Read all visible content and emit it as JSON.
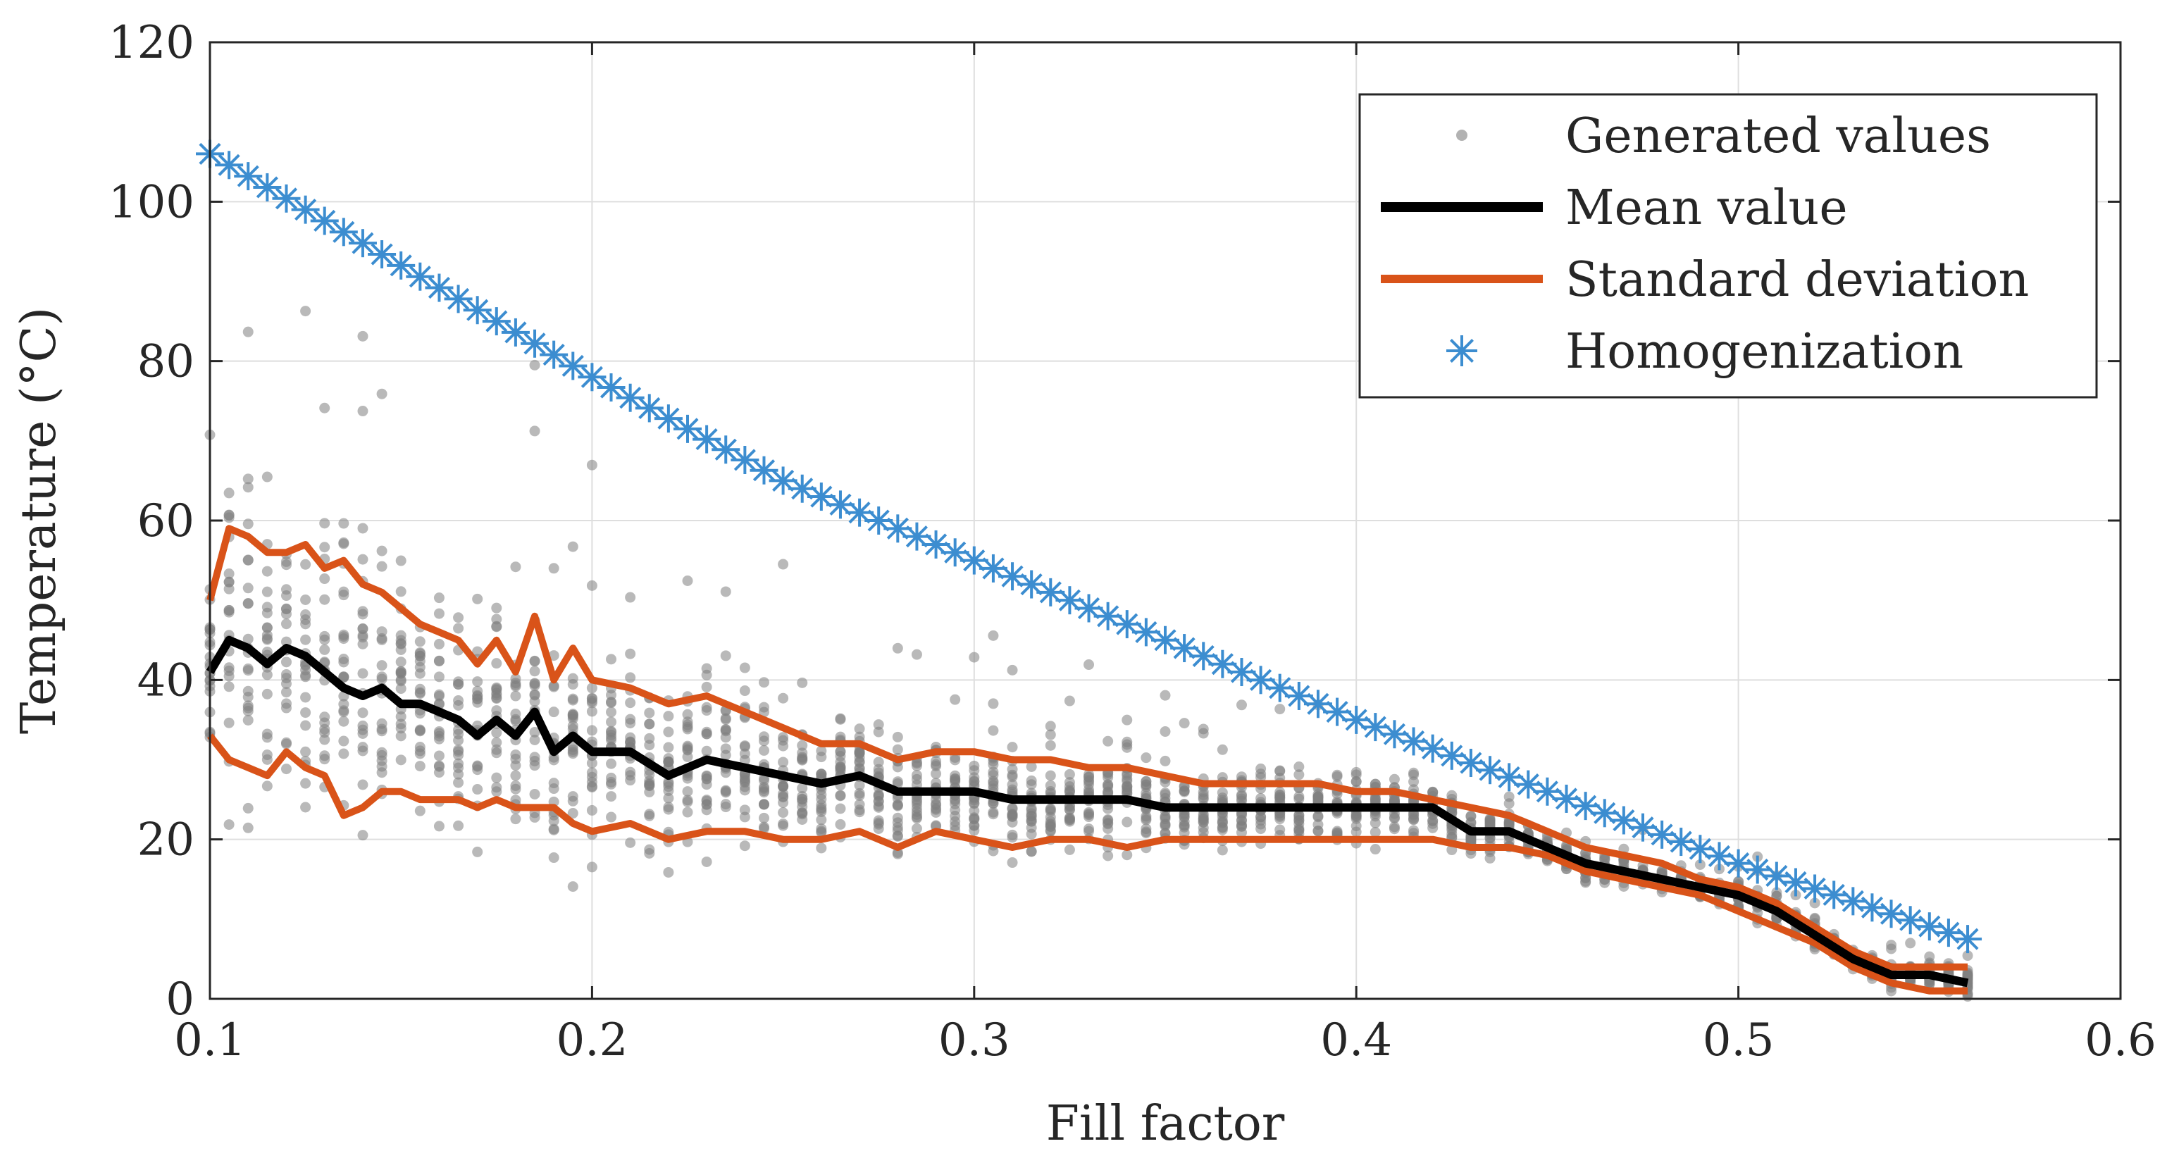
{
  "chart_data": {
    "type": "scatter",
    "title": "",
    "xlabel": "Fill factor",
    "ylabel": "Temperature (°C)",
    "xlim": [
      0.1,
      0.6
    ],
    "ylim": [
      0,
      120
    ],
    "xticks": [
      0.1,
      0.2,
      0.3,
      0.4,
      0.5,
      0.6
    ],
    "yticks": [
      0,
      20,
      40,
      60,
      80,
      100,
      120
    ],
    "xtick_labels": [
      "0.1",
      "0.2",
      "0.3",
      "0.4",
      "0.5",
      "0.6"
    ],
    "ytick_labels": [
      "0",
      "20",
      "40",
      "60",
      "80",
      "100",
      "120"
    ],
    "grid": true,
    "legend_position": "top-right",
    "colors": {
      "generated": "#7f7f7f",
      "mean": "#000000",
      "std": "#d95319",
      "homogenization": "#3c8dd0",
      "axes": "#262626",
      "grid": "#dedede"
    },
    "legend": [
      {
        "key": "generated",
        "label": "Generated values",
        "marker": "dot"
      },
      {
        "key": "mean",
        "label": "Mean value",
        "marker": "line"
      },
      {
        "key": "std",
        "label": "Standard deviation",
        "marker": "line"
      },
      {
        "key": "homogenization",
        "label": "Homogenization",
        "marker": "star"
      }
    ],
    "series": {
      "mean": {
        "name": "Mean value",
        "x": [
          0.1,
          0.105,
          0.11,
          0.115,
          0.12,
          0.125,
          0.13,
          0.135,
          0.14,
          0.145,
          0.15,
          0.155,
          0.16,
          0.165,
          0.17,
          0.175,
          0.18,
          0.185,
          0.19,
          0.195,
          0.2,
          0.21,
          0.22,
          0.23,
          0.24,
          0.25,
          0.26,
          0.27,
          0.28,
          0.29,
          0.3,
          0.31,
          0.32,
          0.33,
          0.34,
          0.35,
          0.36,
          0.37,
          0.38,
          0.39,
          0.4,
          0.41,
          0.42,
          0.43,
          0.44,
          0.45,
          0.46,
          0.47,
          0.48,
          0.49,
          0.5,
          0.51,
          0.52,
          0.53,
          0.54,
          0.55,
          0.56
        ],
        "y": [
          41,
          45,
          44,
          42,
          44,
          43,
          41,
          39,
          38,
          39,
          37,
          37,
          36,
          35,
          33,
          35,
          33,
          36,
          31,
          33,
          31,
          31,
          28,
          30,
          29,
          28,
          27,
          28,
          26,
          26,
          26,
          25,
          25,
          25,
          25,
          24,
          24,
          24,
          24,
          24,
          24,
          24,
          24,
          21,
          21,
          19,
          17,
          16,
          15,
          14,
          13,
          11,
          8,
          5,
          3,
          3,
          2
        ]
      },
      "std_upper": {
        "name": "Standard deviation (upper)",
        "x": [
          0.1,
          0.105,
          0.11,
          0.115,
          0.12,
          0.125,
          0.13,
          0.135,
          0.14,
          0.145,
          0.15,
          0.155,
          0.16,
          0.165,
          0.17,
          0.175,
          0.18,
          0.185,
          0.19,
          0.195,
          0.2,
          0.21,
          0.22,
          0.23,
          0.24,
          0.25,
          0.26,
          0.27,
          0.28,
          0.29,
          0.3,
          0.31,
          0.32,
          0.33,
          0.34,
          0.35,
          0.36,
          0.37,
          0.38,
          0.39,
          0.4,
          0.41,
          0.42,
          0.43,
          0.44,
          0.45,
          0.46,
          0.47,
          0.48,
          0.49,
          0.5,
          0.51,
          0.52,
          0.53,
          0.54,
          0.55,
          0.56
        ],
        "y": [
          50,
          59,
          58,
          56,
          56,
          57,
          54,
          55,
          52,
          51,
          49,
          47,
          46,
          45,
          42,
          45,
          41,
          48,
          40,
          44,
          40,
          39,
          37,
          38,
          36,
          34,
          32,
          32,
          30,
          31,
          31,
          30,
          30,
          29,
          29,
          28,
          27,
          27,
          27,
          27,
          26,
          26,
          25,
          24,
          23,
          21,
          19,
          18,
          17,
          15,
          14,
          12,
          9,
          6,
          4,
          4,
          4
        ]
      },
      "std_lower": {
        "name": "Standard deviation (lower)",
        "x": [
          0.1,
          0.105,
          0.11,
          0.115,
          0.12,
          0.125,
          0.13,
          0.135,
          0.14,
          0.145,
          0.15,
          0.155,
          0.16,
          0.165,
          0.17,
          0.175,
          0.18,
          0.185,
          0.19,
          0.195,
          0.2,
          0.21,
          0.22,
          0.23,
          0.24,
          0.25,
          0.26,
          0.27,
          0.28,
          0.29,
          0.3,
          0.31,
          0.32,
          0.33,
          0.34,
          0.35,
          0.36,
          0.37,
          0.38,
          0.39,
          0.4,
          0.41,
          0.42,
          0.43,
          0.44,
          0.45,
          0.46,
          0.47,
          0.48,
          0.49,
          0.5,
          0.51,
          0.52,
          0.53,
          0.54,
          0.55,
          0.56
        ],
        "y": [
          33,
          30,
          29,
          28,
          31,
          29,
          28,
          23,
          24,
          26,
          26,
          25,
          25,
          25,
          24,
          25,
          24,
          24,
          24,
          22,
          21,
          22,
          20,
          21,
          21,
          20,
          20,
          21,
          19,
          21,
          20,
          19,
          20,
          20,
          19,
          20,
          20,
          20,
          20,
          20,
          20,
          20,
          20,
          19,
          19,
          18,
          16,
          15,
          14,
          13,
          11,
          9,
          7,
          4,
          2,
          1,
          1
        ]
      },
      "homogenization": {
        "name": "Homogenization",
        "x_start": 0.1,
        "x_end": 0.56,
        "x_step": 0.005,
        "anchor_x": [
          0.1,
          0.15,
          0.2,
          0.25,
          0.3,
          0.35,
          0.4,
          0.45,
          0.5,
          0.56
        ],
        "anchor_y": [
          106,
          92,
          78,
          65,
          55,
          45,
          35,
          26,
          17,
          7.5
        ]
      },
      "generated": {
        "name": "Generated values",
        "samples_per_x": 22,
        "seed": 7,
        "note": "scatter cloud around mean with standard deviation spread"
      }
    }
  }
}
